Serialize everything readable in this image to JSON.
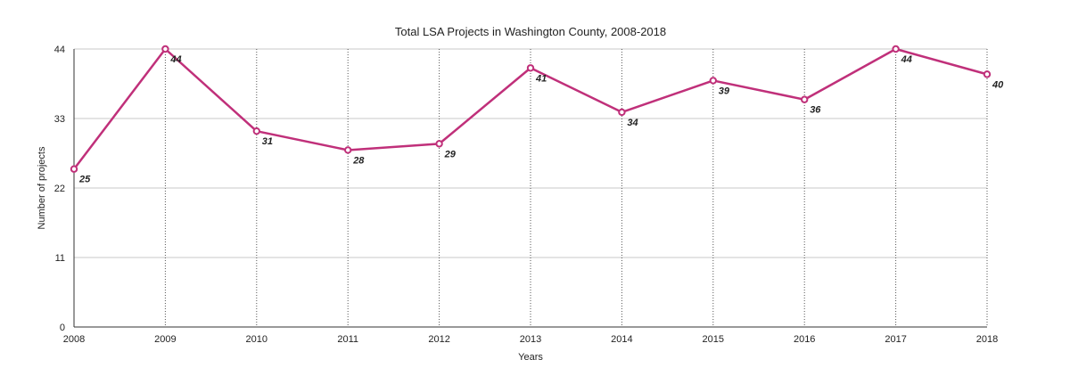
{
  "chart_data": {
    "type": "line",
    "title": "Total LSA Projects in Washington County, 2008-2018",
    "xlabel": "Years",
    "ylabel": "Number of projects",
    "categories": [
      "2008",
      "2009",
      "2010",
      "2011",
      "2012",
      "2013",
      "2014",
      "2015",
      "2016",
      "2017",
      "2018"
    ],
    "series": [
      {
        "values": [
          25,
          44,
          31,
          28,
          29,
          41,
          34,
          39,
          36,
          44,
          40
        ]
      }
    ],
    "y_ticks": [
      "0",
      "11",
      "22",
      "33",
      "44"
    ],
    "ylim": [
      0,
      44
    ],
    "grid": {
      "horizontal": true,
      "vertical": true
    },
    "colors": {
      "line": "#c0307a",
      "grid": "#c8c8c8",
      "vgrid": "#555555",
      "axis": "#333333"
    }
  }
}
